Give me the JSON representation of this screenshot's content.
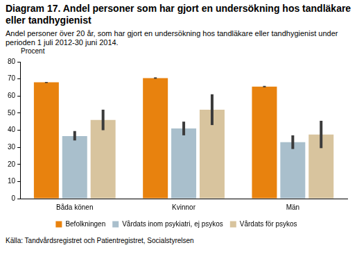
{
  "chart_data": {
    "type": "bar",
    "title": "Diagram 17. Andel personer som har gjort en undersökning hos tandläkare eller tandhygienist",
    "subtitle": "Andel personer över 20 år, som har gjort en undersökning hos tandläkare eller tandhygienist under perioden 1 juli 2012-30 juni 2014.",
    "y_label": "Procent",
    "source": "Källa: Tandvårdsregistret och Patientregistret, Socialstyrelsen",
    "categories": [
      "Båda könen",
      "Kvinnor",
      "Män"
    ],
    "series": [
      {
        "name": "Befolkningen",
        "color": "#e8820e",
        "values": [
          68,
          70.5,
          65.5
        ],
        "error_bars": [
          [
            67.6,
            68.2
          ],
          [
            70.1,
            70.9
          ],
          [
            65.1,
            65.9
          ]
        ]
      },
      {
        "name": "Vårdats inom psykiatri, ej psykos",
        "color": "#a9bfcc",
        "values": [
          36.5,
          41,
          33
        ],
        "error_bars": [
          [
            34,
            39.5
          ],
          [
            37,
            45
          ],
          [
            29,
            37
          ]
        ]
      },
      {
        "name": "Vårdats för psykos",
        "color": "#d8c49e",
        "values": [
          46,
          52,
          37.5
        ],
        "error_bars": [
          [
            40,
            52
          ],
          [
            43,
            61
          ],
          [
            29.5,
            45.5
          ]
        ]
      }
    ],
    "ylim": [
      0,
      80
    ],
    "yticks": [
      0,
      10,
      20,
      30,
      40,
      50,
      60,
      70,
      80
    ],
    "grid": false,
    "legend": "bottom"
  }
}
